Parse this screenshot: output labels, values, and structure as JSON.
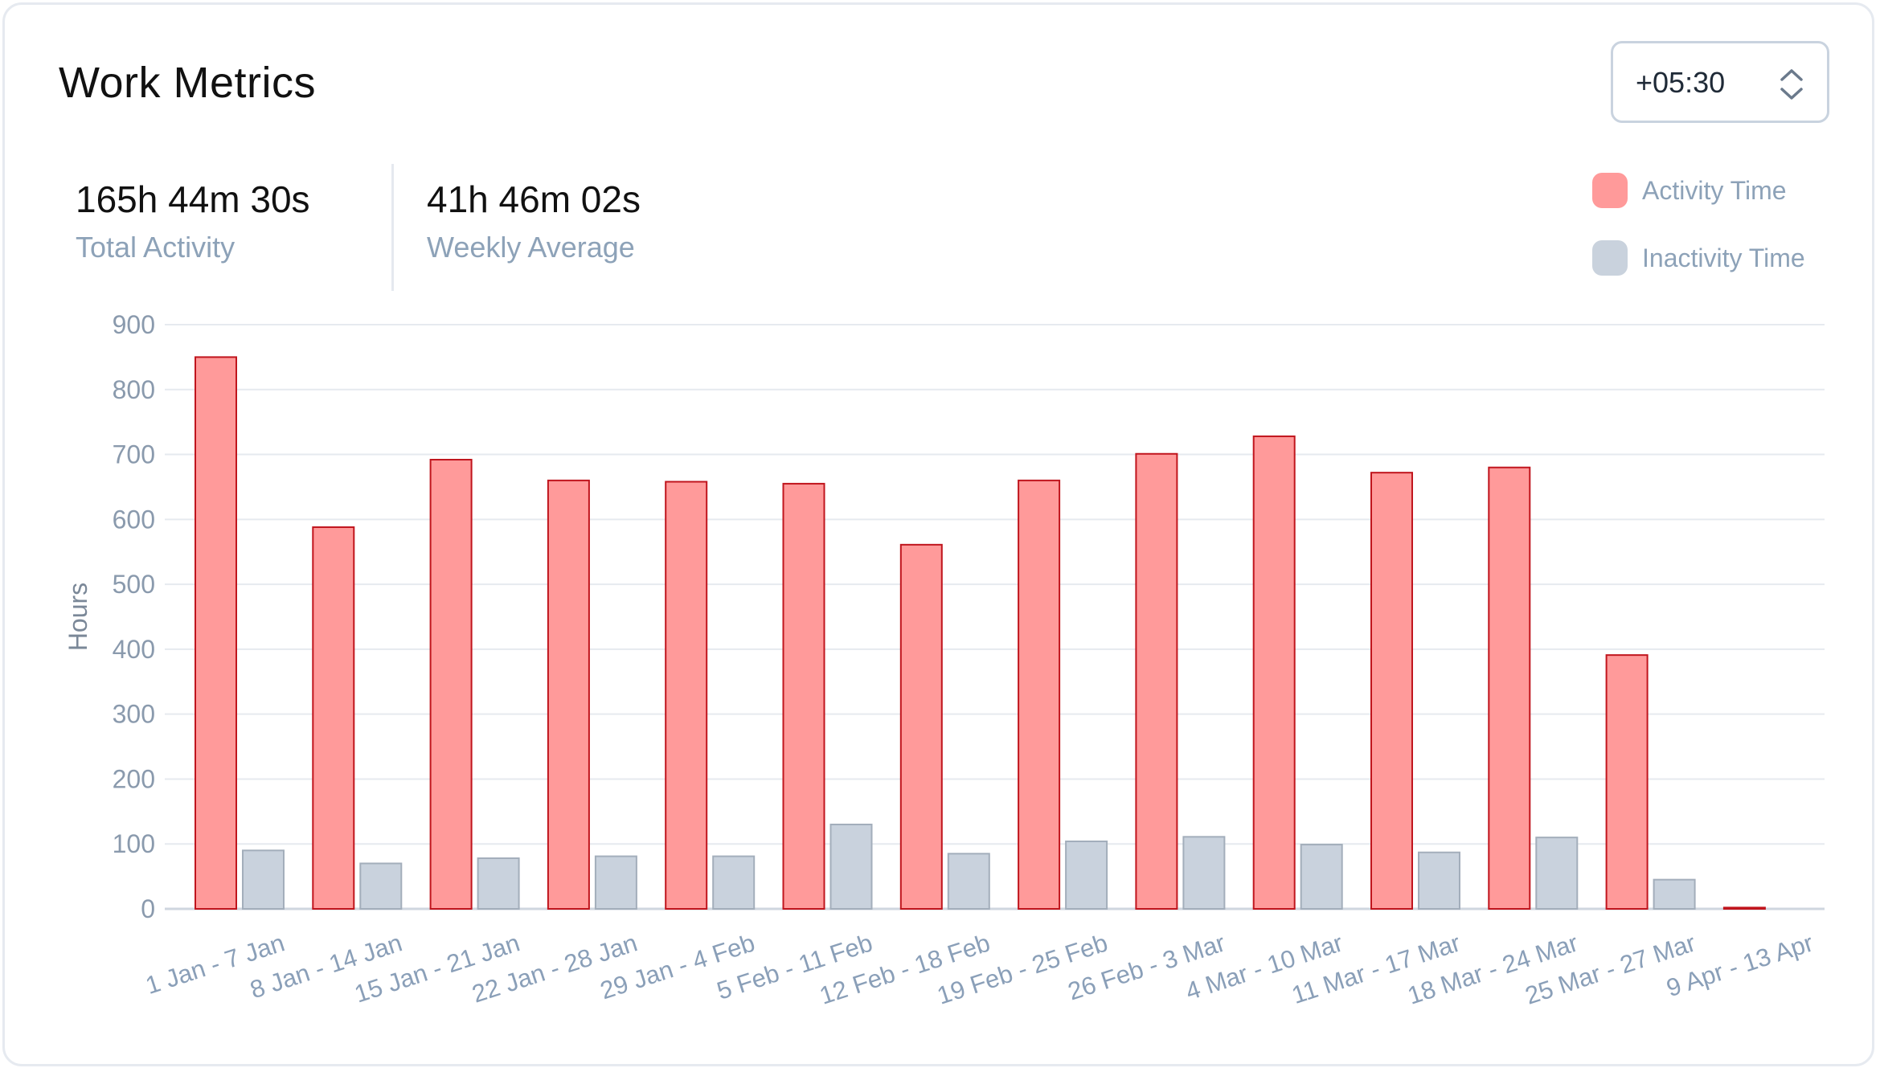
{
  "header": {
    "title": "Work Metrics",
    "timezone": "+05:30",
    "timezone_icon": "chevron-up-down-icon"
  },
  "stats": {
    "total_activity_value": "165h 44m 30s",
    "total_activity_label": "Total Activity",
    "weekly_average_value": "41h 46m 02s",
    "weekly_average_label": "Weekly Average"
  },
  "legend": {
    "activity_label": "Activity Time",
    "inactivity_label": "Inactivity Time",
    "activity_color": "#ff9a9a",
    "activity_border": "#c0151d",
    "inactivity_color": "#c9d2dd",
    "inactivity_border": "#a3aebb"
  },
  "chart_data": {
    "type": "bar",
    "title": "",
    "xlabel": "",
    "ylabel": "Hours",
    "ylim": [
      0,
      900
    ],
    "yticks": [
      0,
      100,
      200,
      300,
      400,
      500,
      600,
      700,
      800,
      900
    ],
    "grid": true,
    "legend_position": "top-right",
    "categories": [
      "1 Jan - 7 Jan",
      "8 Jan - 14 Jan",
      "15 Jan - 21 Jan",
      "22 Jan - 28 Jan",
      "29 Jan - 4 Feb",
      "5 Feb - 11 Feb",
      "12 Feb - 18 Feb",
      "19 Feb - 25 Feb",
      "26 Feb - 3 Mar",
      "4 Mar - 10 Mar",
      "11 Mar - 17 Mar",
      "18 Mar - 24 Mar",
      "25 Mar - 27 Mar",
      "9 Apr - 13 Apr"
    ],
    "series": [
      {
        "name": "Activity Time",
        "values": [
          850,
          588,
          692,
          660,
          658,
          655,
          561,
          660,
          701,
          728,
          672,
          680,
          391,
          2
        ]
      },
      {
        "name": "Inactivity Time",
        "values": [
          90,
          70,
          78,
          81,
          81,
          130,
          85,
          104,
          111,
          99,
          87,
          110,
          45,
          0
        ]
      }
    ]
  }
}
